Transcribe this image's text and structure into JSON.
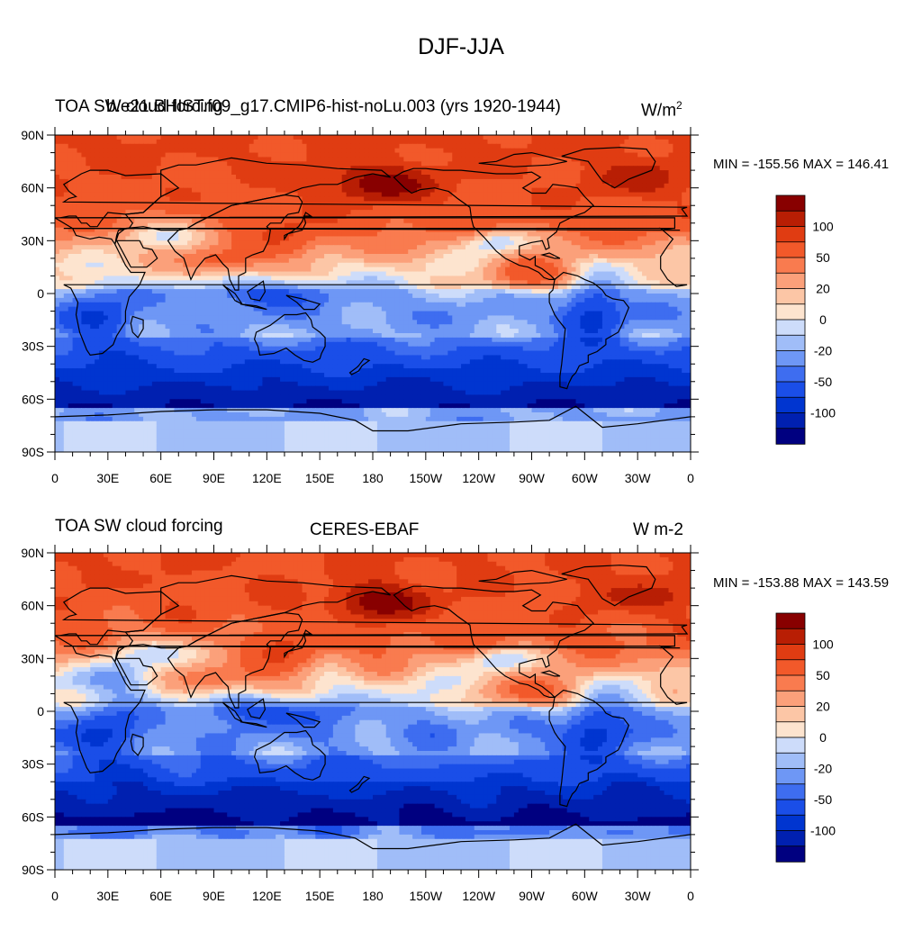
{
  "main_title": "DJF-JJA",
  "palette": [
    "#000080",
    "#0020b0",
    "#0035d0",
    "#1a4ee8",
    "#3e6df0",
    "#6e97f5",
    "#a0bdf8",
    "#cddcfa",
    "#fde4cf",
    "#fcc6a6",
    "#fba07a",
    "#f97b4f",
    "#f2592a",
    "#e03c12",
    "#b81e04",
    "#880000"
  ],
  "land_outline_color": "#000000",
  "chart_data": [
    {
      "type": "heatmap",
      "title": "TOA SW cloud forcing",
      "subtitle": "b.e21.BHIST.f09_g17.CMIP6-hist-noLu.003 (yrs 1920-1944)",
      "units": "W/m",
      "units_superscript": "2",
      "min_max_label": "MIN = -155.56 MAX = 146.41",
      "min": -155.56,
      "max": 146.41,
      "y_tick_labels": [
        "90N",
        "60N",
        "30N",
        "0",
        "30S",
        "60S",
        "90S"
      ],
      "x_tick_labels": [
        "0",
        "30E",
        "60E",
        "90E",
        "120E",
        "150E",
        "180",
        "150W",
        "120W",
        "90W",
        "60W",
        "30W",
        "0"
      ],
      "lat_range": [
        -90,
        90
      ],
      "lon_range": [
        0,
        360
      ],
      "colorbar_labels": [
        "100",
        "50",
        "20",
        "0",
        "-20",
        "-50",
        "-100"
      ]
    },
    {
      "type": "heatmap",
      "title": "TOA SW cloud forcing",
      "subtitle": "CERES-EBAF",
      "units": "W m-2",
      "units_superscript": "",
      "min_max_label": "MIN = -153.88 MAX = 143.59",
      "min": -153.88,
      "max": 143.59,
      "y_tick_labels": [
        "90N",
        "60N",
        "30N",
        "0",
        "30S",
        "60S",
        "90S"
      ],
      "x_tick_labels": [
        "0",
        "30E",
        "60E",
        "90E",
        "120E",
        "150E",
        "180",
        "150W",
        "120W",
        "90W",
        "60W",
        "30W",
        "0"
      ],
      "lat_range": [
        -90,
        90
      ],
      "lon_range": [
        0,
        360
      ],
      "colorbar_labels": [
        "100",
        "50",
        "20",
        "0",
        "-20",
        "-50",
        "-100"
      ]
    }
  ]
}
